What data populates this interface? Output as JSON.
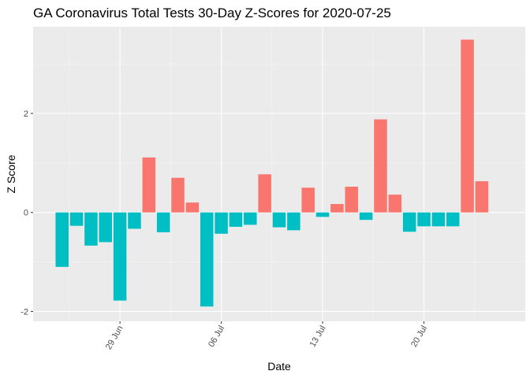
{
  "chart_data": {
    "type": "bar",
    "title": "GA Coronavirus Total Tests 30-Day Z-Scores for 2020-07-25",
    "xlabel": "Date",
    "ylabel": "Z Score",
    "x": [
      "2020-06-25",
      "2020-06-26",
      "2020-06-27",
      "2020-06-28",
      "2020-06-29",
      "2020-06-30",
      "2020-07-01",
      "2020-07-02",
      "2020-07-03",
      "2020-07-04",
      "2020-07-05",
      "2020-07-06",
      "2020-07-07",
      "2020-07-08",
      "2020-07-09",
      "2020-07-10",
      "2020-07-11",
      "2020-07-12",
      "2020-07-13",
      "2020-07-14",
      "2020-07-15",
      "2020-07-16",
      "2020-07-17",
      "2020-07-18",
      "2020-07-19",
      "2020-07-20",
      "2020-07-21",
      "2020-07-22",
      "2020-07-23",
      "2020-07-24",
      "2020-07-25"
    ],
    "values": [
      -1.1,
      -0.27,
      -0.67,
      -0.6,
      -1.78,
      -0.33,
      1.11,
      -0.4,
      0.7,
      0.2,
      -1.9,
      -0.43,
      -0.29,
      -0.25,
      0.77,
      -0.3,
      -0.36,
      0.5,
      -0.09,
      0.17,
      0.52,
      -0.15,
      1.88,
      0.36,
      -0.39,
      -0.28,
      -0.28,
      -0.28,
      3.49,
      0.63,
      null
    ],
    "x_ticks": [
      "2020-06-29",
      "2020-07-06",
      "2020-07-13",
      "2020-07-20"
    ],
    "x_tick_labels": [
      "29 Jun",
      "06 Jul",
      "13 Jul",
      "20 Jul"
    ],
    "y_ticks": [
      -2,
      0,
      2
    ],
    "y_tick_labels": [
      "-2",
      "0",
      "2"
    ],
    "ylim": [
      -2.2,
      3.75
    ],
    "xlim": [
      "2020-06-23",
      "2020-07-27"
    ],
    "grid": true,
    "legend": "none",
    "colors": {
      "positive": "#F8766D",
      "negative": "#00BFC4",
      "panel": "#EBEBEB",
      "grid_major": "#FFFFFF",
      "grid_minor": "#F5F5F5",
      "text": "#000000",
      "axis_text": "#4D4D4D",
      "tick": "#333333"
    }
  }
}
